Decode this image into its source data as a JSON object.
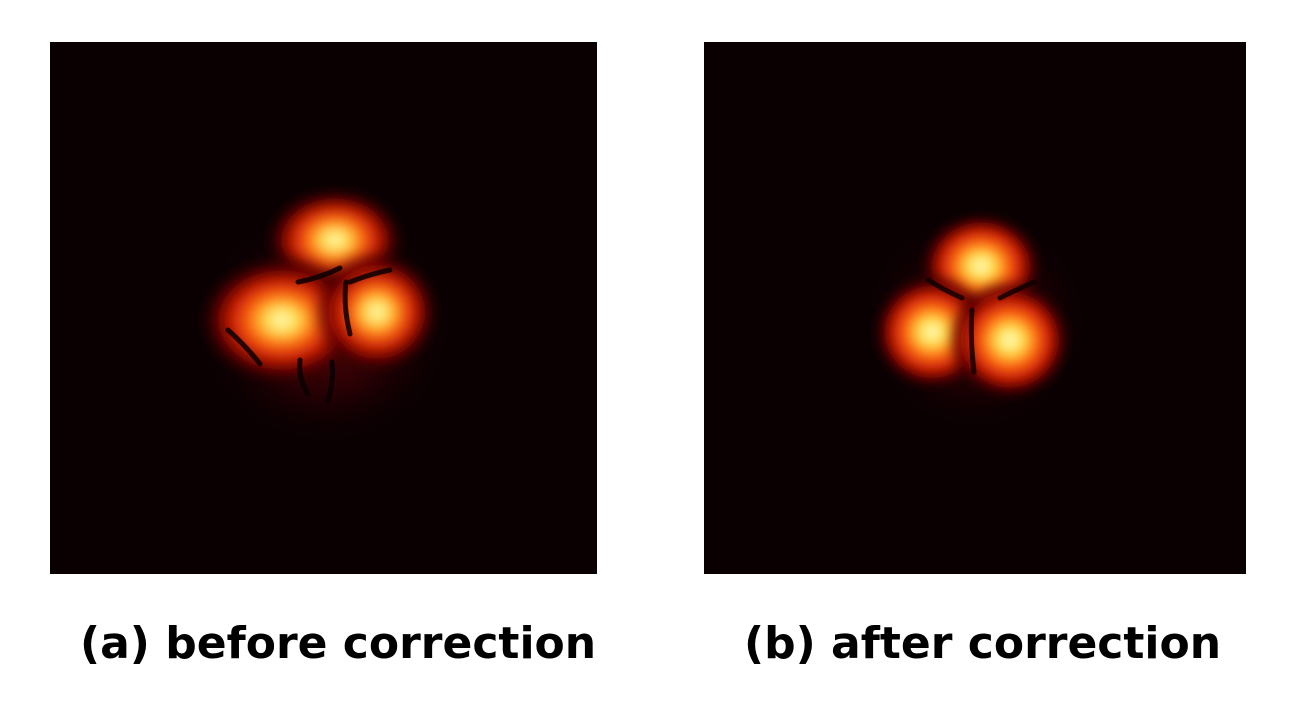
{
  "figure": {
    "panels": [
      {
        "id": "a",
        "caption": "(a) before correction"
      },
      {
        "id": "b",
        "caption": "(b) after correction"
      }
    ],
    "colors": {
      "background": "#0a0002",
      "colormap": "hot",
      "page": "#ffffff"
    }
  }
}
